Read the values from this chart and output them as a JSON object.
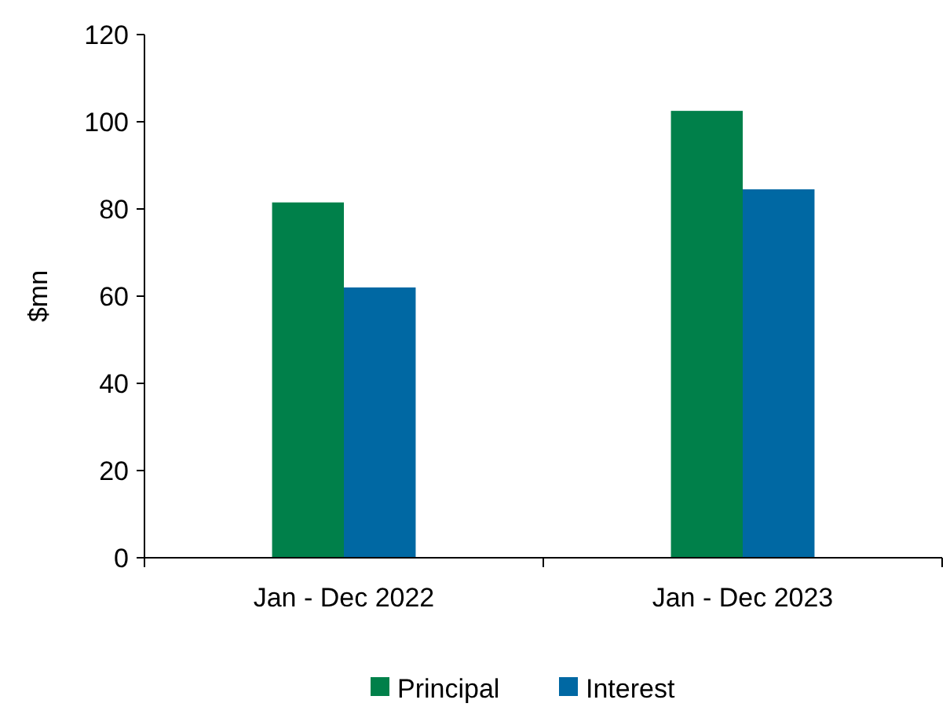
{
  "chart_data": {
    "type": "bar",
    "ylabel": "$mn",
    "categories": [
      "Jan - Dec 2022",
      "Jan - Dec 2023"
    ],
    "series": [
      {
        "name": "Principal",
        "color": "#00804a",
        "values": [
          81.5,
          102.5
        ]
      },
      {
        "name": "Interest",
        "color": "#0068a3",
        "values": [
          62,
          84.5
        ]
      }
    ],
    "ylim": [
      0,
      120
    ],
    "yticks": [
      0,
      20,
      40,
      60,
      80,
      100,
      120
    ],
    "grid": false,
    "legend": "bottom"
  }
}
